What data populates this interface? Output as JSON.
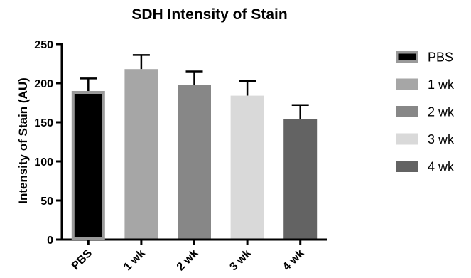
{
  "chart_data": {
    "type": "bar",
    "title": "SDH Intensity of Stain",
    "xlabel": "",
    "ylabel": "Intensity of Stain (AU)",
    "categories": [
      "PBS",
      "1 wk",
      "2 wk",
      "3 wk",
      "4 wk"
    ],
    "values": [
      190,
      218,
      198,
      184,
      154
    ],
    "errors": [
      16,
      18,
      17,
      19,
      18
    ],
    "colors": [
      "#000000",
      "#a6a6a6",
      "#878787",
      "#d9d9d9",
      "#636363"
    ],
    "outline_colors": [
      "#9a9a9a",
      "#a6a6a6",
      "#878787",
      "#d9d9d9",
      "#636363"
    ],
    "ylim": [
      0,
      250
    ],
    "yticks": [
      0,
      50,
      100,
      150,
      200,
      250
    ],
    "grid": false,
    "legend": {
      "position": "right",
      "entries": [
        "PBS",
        "1 wk",
        "2 wk",
        "3 wk",
        "4 wk"
      ]
    }
  }
}
